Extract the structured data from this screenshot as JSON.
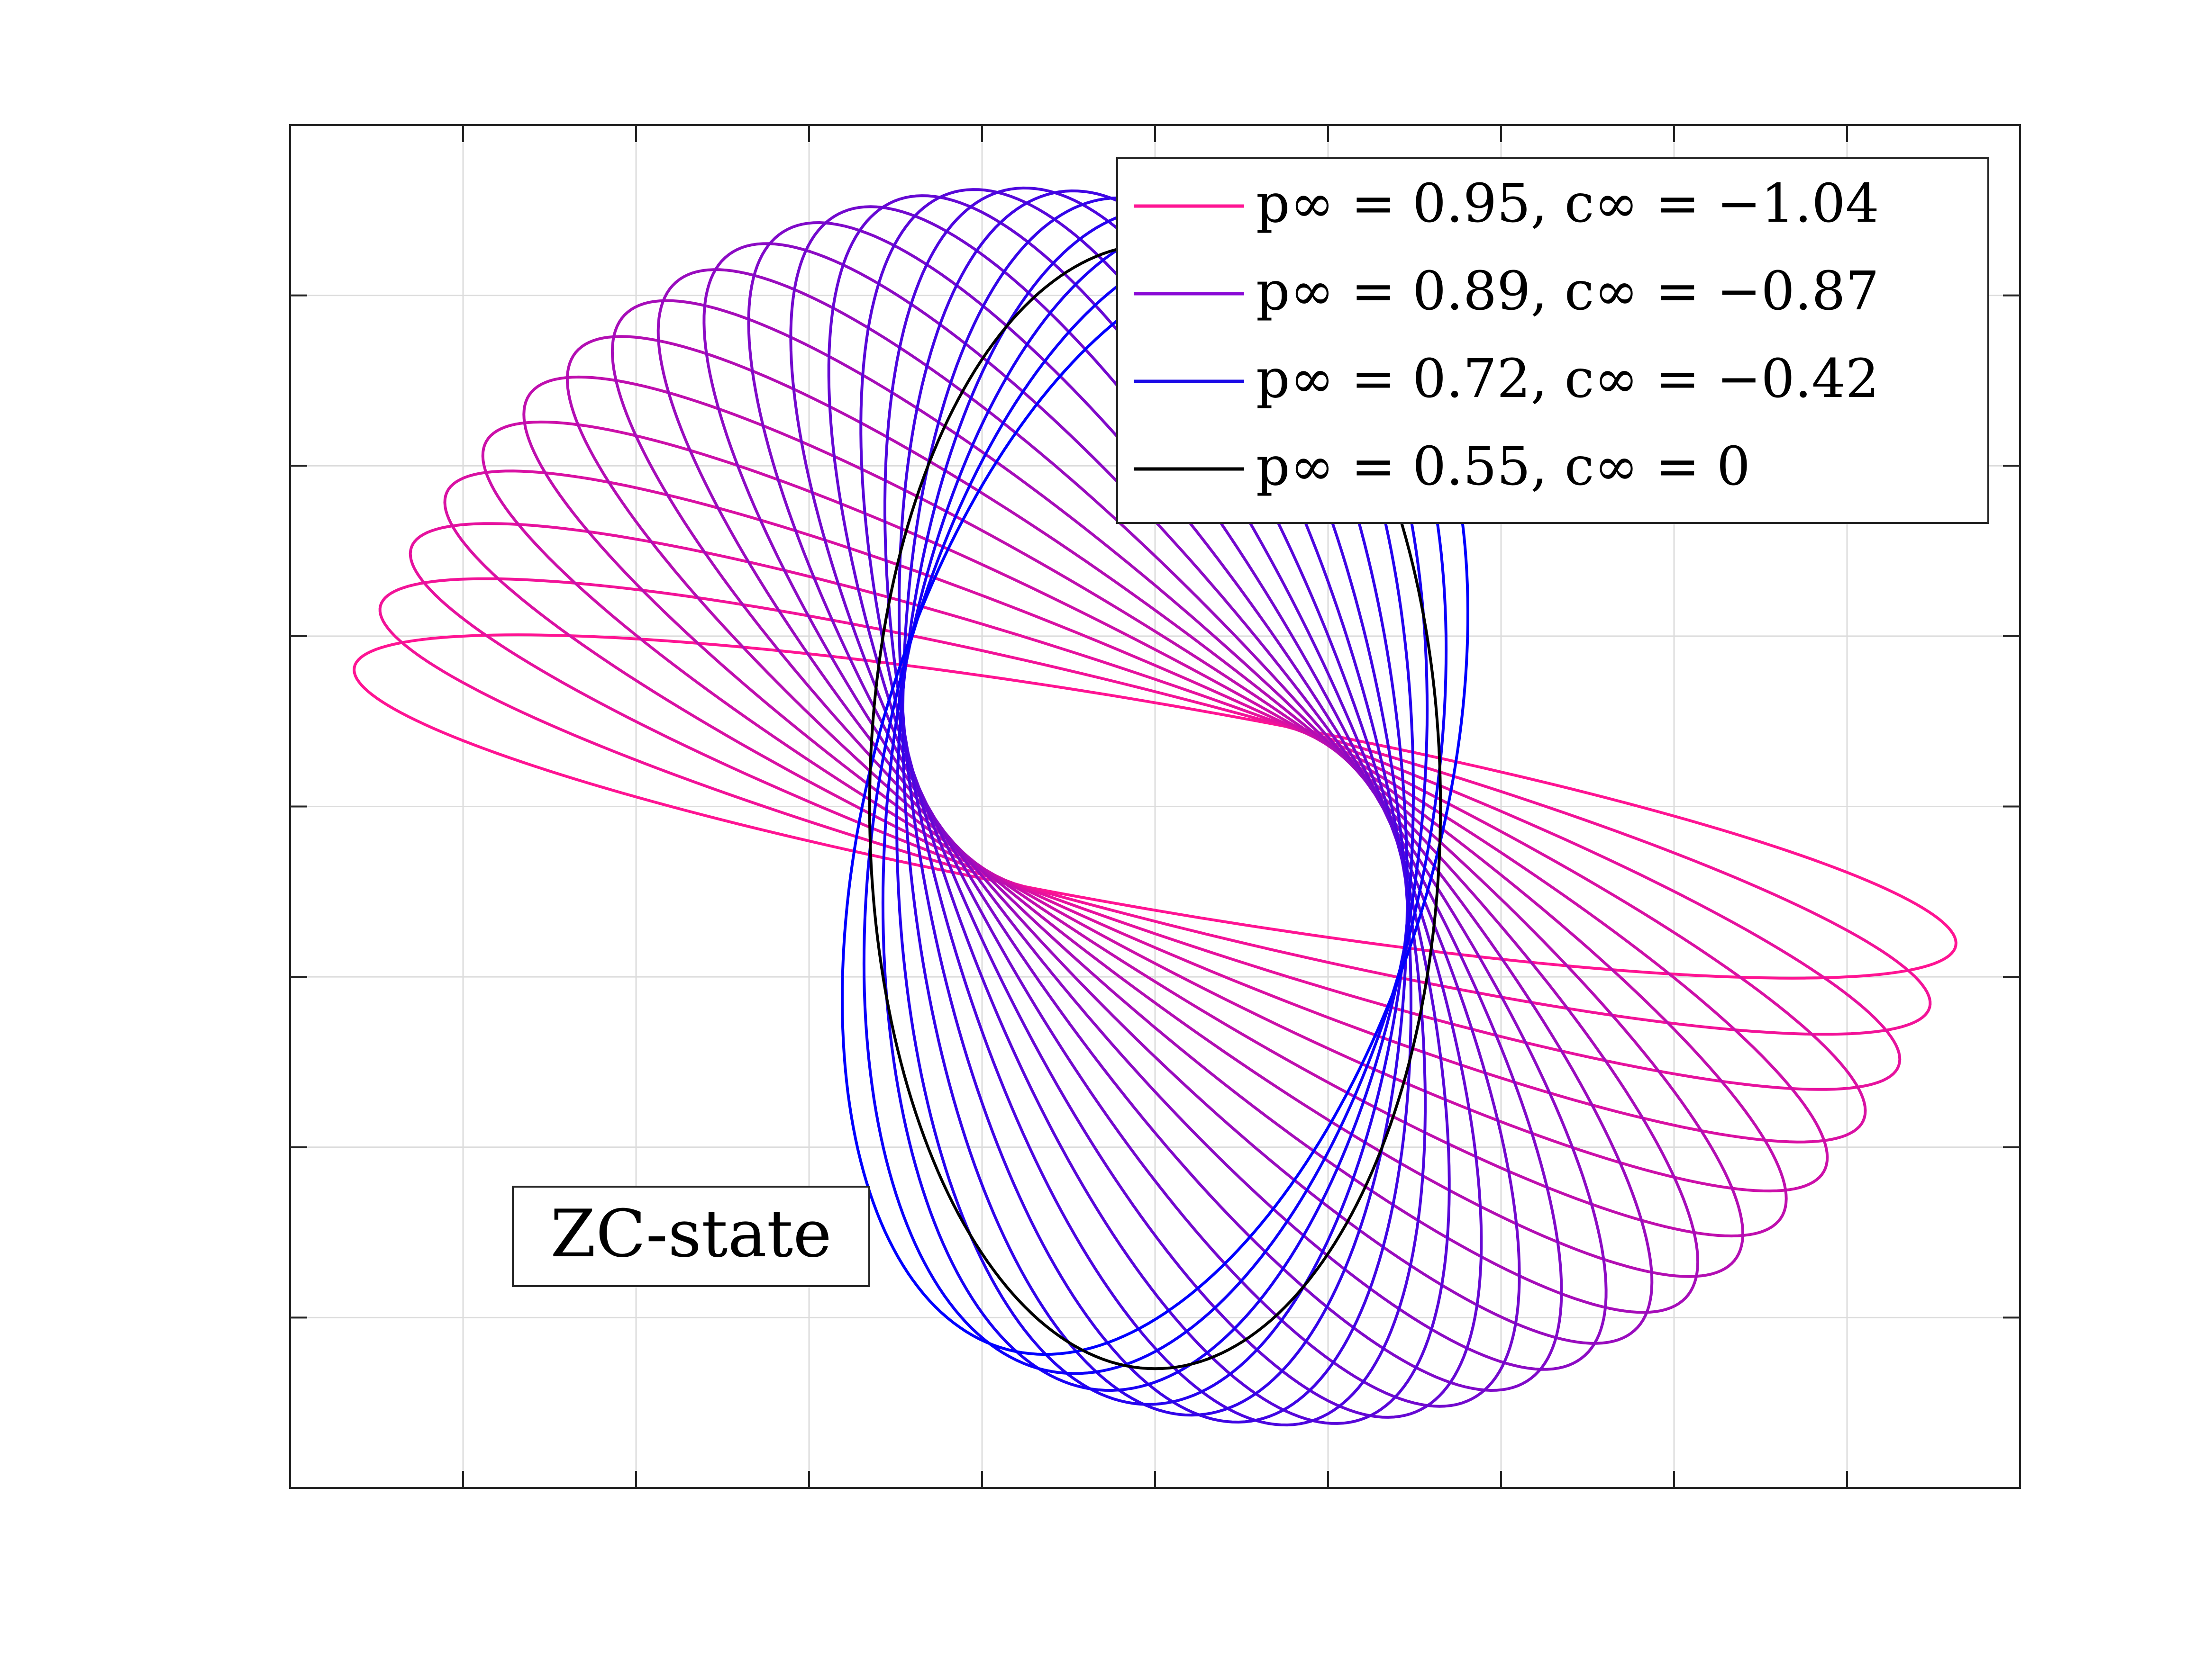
{
  "chart_data": {
    "type": "line",
    "title": "",
    "xlabel": "",
    "ylabel": "",
    "xlim": [
      -5,
      5
    ],
    "ylim": [
      -4,
      4
    ],
    "grid": true,
    "x_ticks": [
      -4,
      -3,
      -2,
      -1,
      0,
      1,
      2,
      3,
      4
    ],
    "y_ticks": [
      -3,
      -2,
      -1,
      0,
      1,
      2,
      3
    ],
    "tick_labels_shown": false,
    "legend_position": "top-right",
    "legend": [
      {
        "label": "p∞ = 0.95, c∞ = −1.04",
        "color": "#ff1493"
      },
      {
        "label": "p∞ = 0.89, c∞ = −0.87",
        "color": "#8a0ad6"
      },
      {
        "label": "p∞ = 0.72, c∞ = −0.42",
        "color": "#1a0ae6"
      },
      {
        "label": "p∞ = 0.55, c∞ = 0",
        "color": "#000000"
      }
    ],
    "annotation": {
      "text": "ZC-state",
      "position": "bottom-left"
    },
    "ellipse_family": {
      "description_units": "data",
      "count": 21,
      "first_member": {
        "center": [
          0,
          0
        ],
        "semi_major": 4.7,
        "semi_minor": 0.6,
        "angle_deg": -10,
        "color": "#ff1493"
      },
      "last_member": {
        "center": [
          0,
          0
        ],
        "semi_major": 3.3,
        "semi_minor": 1.65,
        "angle_deg": -105,
        "color": "#0000ff"
      },
      "black_member": {
        "center": [
          0,
          0
        ],
        "semi_major": 3.3,
        "semi_minor": 1.65,
        "angle_deg": -90,
        "color": "#000000"
      }
    }
  }
}
